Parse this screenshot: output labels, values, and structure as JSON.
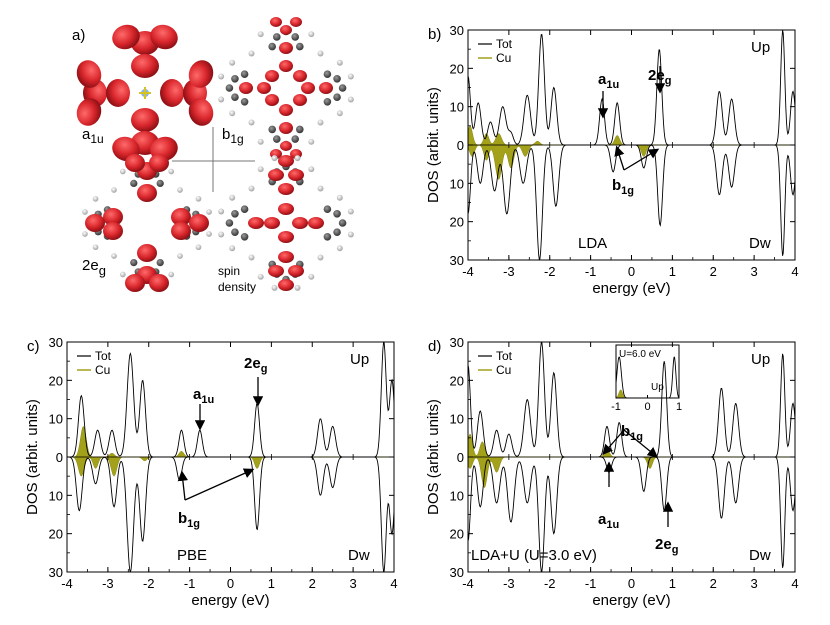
{
  "panel_a": {
    "label": "a)",
    "orbitals": {
      "a1u": {
        "main": "a",
        "sub": "1u"
      },
      "b1g": {
        "main": "b",
        "sub": "1g"
      },
      "eg": {
        "main": "2e",
        "sub": "g"
      }
    },
    "spin_line1": "spin",
    "spin_line2": "density",
    "colors": {
      "lobe": "#d8262c",
      "carbon": "#555555",
      "hydrogen": "#dddddd",
      "nitrogen": "#8fb3e0"
    }
  },
  "chart_data": [
    {
      "id": "b",
      "type": "line",
      "panel_label": "b)",
      "method_label": "LDA",
      "up_label": "Up",
      "down_label": "Dw",
      "xlabel": "energy (eV)",
      "ylabel": "DOS (arbit. units)",
      "xlim": [
        -4,
        4
      ],
      "ylim": [
        -30,
        30
      ],
      "x_ticks": [
        -4,
        -3,
        -2,
        -1,
        0,
        1,
        2,
        3,
        4
      ],
      "y_ticks": [
        30,
        20,
        10,
        0,
        10,
        20,
        30
      ],
      "legend": [
        {
          "name": "Tot",
          "color": "#000000"
        },
        {
          "name": "Cu",
          "color": "#a3a01a"
        }
      ],
      "series": [
        {
          "name": "Tot up",
          "peaks": [
            [
              -4.0,
              18,
              0.06
            ],
            [
              -3.75,
              11,
              0.07
            ],
            [
              -3.45,
              6,
              0.07
            ],
            [
              -3.15,
              10,
              0.08
            ],
            [
              -2.95,
              3,
              0.06
            ],
            [
              -2.55,
              13,
              0.08
            ],
            [
              -2.2,
              29,
              0.07
            ],
            [
              -1.9,
              15,
              0.07
            ],
            [
              -0.72,
              12,
              0.06
            ],
            [
              -0.35,
              11,
              0.06
            ],
            [
              0.68,
              25,
              0.06
            ],
            [
              2.15,
              14,
              0.07
            ],
            [
              2.45,
              12,
              0.07
            ],
            [
              3.7,
              30,
              0.05
            ],
            [
              3.95,
              14,
              0.06
            ]
          ]
        },
        {
          "name": "Tot down",
          "peaks": [
            [
              -4.0,
              -18,
              0.06
            ],
            [
              -3.7,
              -10,
              0.07
            ],
            [
              -3.35,
              -12,
              0.08
            ],
            [
              -3.05,
              -18,
              0.08
            ],
            [
              -2.65,
              -10,
              0.08
            ],
            [
              -2.25,
              -30,
              0.07
            ],
            [
              -1.85,
              -16,
              0.07
            ],
            [
              -0.45,
              -7,
              0.06
            ],
            [
              0.3,
              -6,
              0.06
            ],
            [
              0.7,
              -21,
              0.06
            ],
            [
              2.15,
              -13,
              0.07
            ],
            [
              2.45,
              -11,
              0.07
            ],
            [
              3.7,
              -29,
              0.05
            ],
            [
              3.95,
              -13,
              0.06
            ]
          ]
        },
        {
          "name": "Cu up",
          "peaks": [
            [
              -3.95,
              5,
              0.06
            ],
            [
              -3.55,
              3,
              0.06
            ],
            [
              -3.25,
              3,
              0.07
            ],
            [
              -0.35,
              2.5,
              0.06
            ],
            [
              -2.3,
              1,
              0.06
            ]
          ]
        },
        {
          "name": "Cu down",
          "peaks": [
            [
              -3.9,
              -3,
              0.06
            ],
            [
              -3.55,
              -4,
              0.06
            ],
            [
              -3.25,
              -9,
              0.08
            ],
            [
              -2.95,
              -6,
              0.07
            ],
            [
              -2.6,
              -3,
              0.07
            ],
            [
              0.3,
              -3,
              0.06
            ]
          ]
        }
      ],
      "annotations": [
        {
          "main": "a",
          "sub": "1u",
          "kind": "state"
        },
        {
          "main": "2e",
          "sub": "g",
          "kind": "state"
        },
        {
          "main": "b",
          "sub": "1g",
          "kind": "state"
        }
      ]
    },
    {
      "id": "c",
      "type": "line",
      "panel_label": "c)",
      "method_label": "PBE",
      "up_label": "Up",
      "down_label": "Dw",
      "xlabel": "energy (eV)",
      "ylabel": "DOS (arbit. units)",
      "xlim": [
        -4,
        4
      ],
      "ylim": [
        -30,
        30
      ],
      "x_ticks": [
        -4,
        -3,
        -2,
        -1,
        0,
        1,
        2,
        3,
        4
      ],
      "y_ticks": [
        30,
        20,
        10,
        0,
        10,
        20,
        30
      ],
      "legend": [
        {
          "name": "Tot",
          "color": "#000000"
        },
        {
          "name": "Cu",
          "color": "#a3a01a"
        }
      ],
      "series": [
        {
          "name": "Tot up",
          "peaks": [
            [
              -3.65,
              16,
              0.07
            ],
            [
              -3.25,
              7,
              0.07
            ],
            [
              -2.9,
              7,
              0.07
            ],
            [
              -2.45,
              27,
              0.08
            ],
            [
              -2.15,
              20,
              0.07
            ],
            [
              -1.2,
              7,
              0.06
            ],
            [
              -0.75,
              7,
              0.06
            ],
            [
              0.65,
              14,
              0.06
            ],
            [
              2.2,
              10,
              0.07
            ],
            [
              2.5,
              8,
              0.07
            ],
            [
              3.75,
              30,
              0.06
            ],
            [
              3.95,
              20,
              0.06
            ]
          ]
        },
        {
          "name": "Tot down",
          "peaks": [
            [
              -3.7,
              -14,
              0.07
            ],
            [
              -3.3,
              -7,
              0.07
            ],
            [
              -2.85,
              -13,
              0.07
            ],
            [
              -2.45,
              -30,
              0.08
            ],
            [
              -2.15,
              -22,
              0.07
            ],
            [
              -1.25,
              -6,
              0.06
            ],
            [
              0.65,
              -19,
              0.06
            ],
            [
              2.2,
              -10,
              0.07
            ],
            [
              2.5,
              -8,
              0.07
            ],
            [
              3.75,
              -30,
              0.06
            ],
            [
              3.95,
              -20,
              0.06
            ]
          ]
        },
        {
          "name": "Cu up",
          "peaks": [
            [
              -3.6,
              8,
              0.07
            ],
            [
              -1.2,
              1.5,
              0.06
            ],
            [
              -2.9,
              1,
              0.06
            ]
          ]
        },
        {
          "name": "Cu down",
          "peaks": [
            [
              -3.65,
              -5,
              0.07
            ],
            [
              -3.3,
              -3,
              0.06
            ],
            [
              -2.85,
              -5,
              0.07
            ],
            [
              0.65,
              -3,
              0.06
            ],
            [
              -2.1,
              -1,
              0.06
            ]
          ]
        }
      ],
      "annotations": [
        {
          "main": "a",
          "sub": "1u",
          "kind": "state"
        },
        {
          "main": "2e",
          "sub": "g",
          "kind": "state"
        },
        {
          "main": "b",
          "sub": "1g",
          "kind": "state"
        }
      ]
    },
    {
      "id": "d",
      "type": "line",
      "panel_label": "d)",
      "method_label": "LDA+U",
      "param_label": "(U=3.0 eV)",
      "up_label": "Up",
      "down_label": "Dw",
      "xlabel": "energy (eV)",
      "ylabel": "DOS (arbit. units)",
      "xlim": [
        -4,
        4
      ],
      "ylim": [
        -30,
        30
      ],
      "x_ticks": [
        -4,
        -3,
        -2,
        -1,
        0,
        1,
        2,
        3,
        4
      ],
      "y_ticks": [
        30,
        20,
        10,
        0,
        10,
        20,
        30
      ],
      "legend": [
        {
          "name": "Tot",
          "color": "#000000"
        },
        {
          "name": "Cu",
          "color": "#a3a01a"
        }
      ],
      "series": [
        {
          "name": "Tot up",
          "peaks": [
            [
              -4.0,
              24,
              0.06
            ],
            [
              -3.7,
              12,
              0.07
            ],
            [
              -3.3,
              7,
              0.07
            ],
            [
              -3.0,
              6,
              0.07
            ],
            [
              -2.55,
              15,
              0.08
            ],
            [
              -2.2,
              30,
              0.07
            ],
            [
              -1.9,
              22,
              0.07
            ],
            [
              -0.6,
              8,
              0.06
            ],
            [
              -0.3,
              9,
              0.06
            ],
            [
              0.8,
              25,
              0.06
            ],
            [
              2.2,
              18,
              0.07
            ],
            [
              2.55,
              14,
              0.07
            ],
            [
              3.7,
              27,
              0.05
            ],
            [
              3.95,
              14,
              0.06
            ]
          ]
        },
        {
          "name": "Tot down",
          "peaks": [
            [
              -4.0,
              -22,
              0.06
            ],
            [
              -3.7,
              -13,
              0.07
            ],
            [
              -3.3,
              -12,
              0.08
            ],
            [
              -2.95,
              -17,
              0.08
            ],
            [
              -2.55,
              -12,
              0.08
            ],
            [
              -2.2,
              -30,
              0.07
            ],
            [
              -1.9,
              -20,
              0.07
            ],
            [
              -0.55,
              -4,
              0.06
            ],
            [
              0.3,
              -9,
              0.06
            ],
            [
              0.8,
              -14,
              0.06
            ],
            [
              2.2,
              -16,
              0.07
            ],
            [
              2.55,
              -12,
              0.07
            ],
            [
              3.7,
              -29,
              0.05
            ],
            [
              3.95,
              -14,
              0.06
            ]
          ]
        },
        {
          "name": "Cu up",
          "peaks": [
            [
              -3.95,
              6,
              0.06
            ],
            [
              -3.65,
              4,
              0.06
            ],
            [
              -0.6,
              2,
              0.06
            ]
          ]
        },
        {
          "name": "Cu down",
          "peaks": [
            [
              -3.95,
              -3,
              0.06
            ],
            [
              -3.6,
              -8,
              0.07
            ],
            [
              -3.3,
              -4,
              0.07
            ],
            [
              0.45,
              -3,
              0.06
            ]
          ]
        }
      ],
      "annotations": [
        {
          "main": "a",
          "sub": "1u",
          "kind": "state"
        },
        {
          "main": "2e",
          "sub": "g",
          "kind": "state"
        },
        {
          "main": "b",
          "sub": "1g",
          "kind": "state"
        }
      ],
      "inset": {
        "label": "U=6.0 eV",
        "up_label": "Up",
        "xlim": [
          -1,
          1
        ],
        "x_ticks": [
          -1,
          0,
          1
        ],
        "series": [
          {
            "name": "Tot up",
            "peaks": [
              [
                -0.9,
                1,
                0.07
              ],
              [
                0.85,
                1,
                0.05
              ]
            ]
          },
          {
            "name": "Cu up",
            "peaks": [
              [
                -0.85,
                0.2,
                0.06
              ]
            ]
          }
        ]
      }
    }
  ]
}
